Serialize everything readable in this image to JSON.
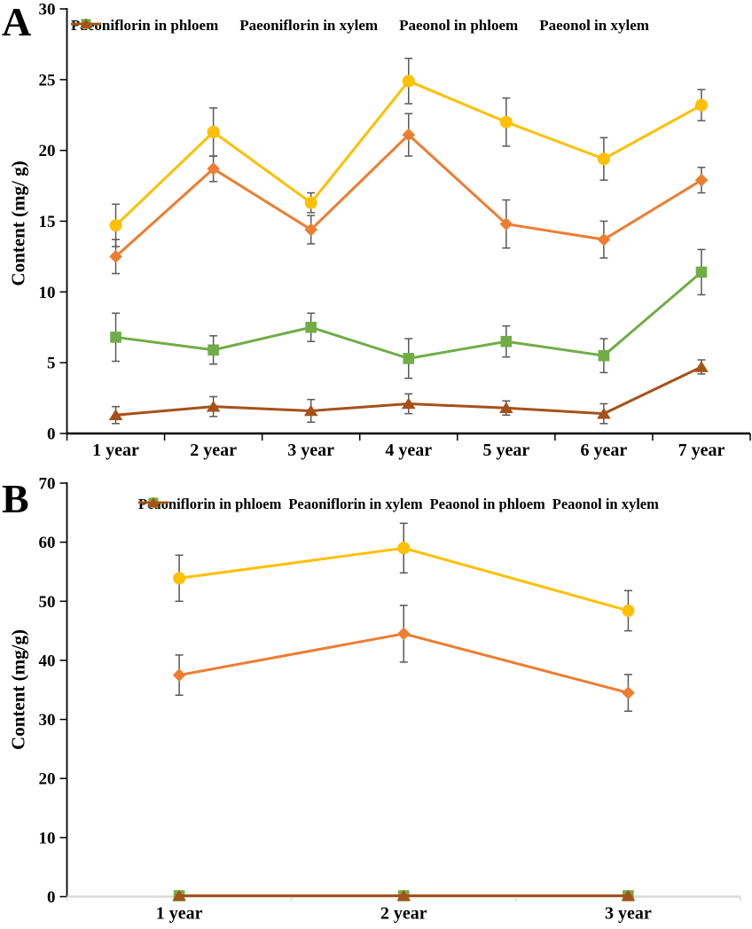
{
  "figure": {
    "background": "#ffffff",
    "error_bar_color": "#595959",
    "panel_count": 2
  },
  "chart_data": [
    {
      "type": "line",
      "panel_label": "A",
      "title": "",
      "xlabel": "",
      "ylabel": "Content (mg/ g)",
      "categories": [
        "1 year",
        "2 year",
        "3 year",
        "4 year",
        "5 year",
        "6 year",
        "7 year"
      ],
      "ylim": [
        0,
        30
      ],
      "yticks": [
        0,
        5,
        10,
        15,
        20,
        25,
        30
      ],
      "grid": false,
      "error_bars": true,
      "legend_position": "top",
      "axis_color": "#000000",
      "x_axis_color": "#000000",
      "series": [
        {
          "name": "Paeoniflorin in phloem",
          "marker": "diamond",
          "color": "#ED7D31",
          "values": [
            12.5,
            18.7,
            14.4,
            21.1,
            14.8,
            13.7,
            17.9
          ],
          "errors": [
            1.2,
            0.9,
            1.0,
            1.5,
            1.7,
            1.3,
            0.9
          ]
        },
        {
          "name": "Paeoniflorin in xylem",
          "marker": "circle",
          "color": "#FFC000",
          "values": [
            14.7,
            21.3,
            16.3,
            24.9,
            22.0,
            19.4,
            23.2
          ],
          "errors": [
            1.5,
            1.7,
            0.7,
            1.6,
            1.7,
            1.5,
            1.1
          ]
        },
        {
          "name": "Paeonol in phloem",
          "marker": "square",
          "color": "#70AD47",
          "values": [
            6.8,
            5.9,
            7.5,
            5.3,
            6.5,
            5.5,
            11.4
          ],
          "errors": [
            1.7,
            1.0,
            1.0,
            1.4,
            1.1,
            1.2,
            1.6
          ]
        },
        {
          "name": "Paeonol in xylem",
          "marker": "triangle",
          "color": "#A5511A",
          "values": [
            1.3,
            1.9,
            1.6,
            2.1,
            1.8,
            1.4,
            4.7
          ],
          "errors": [
            0.6,
            0.7,
            0.8,
            0.7,
            0.5,
            0.7,
            0.5
          ]
        }
      ]
    },
    {
      "type": "line",
      "panel_label": "B",
      "title": "",
      "xlabel": "",
      "ylabel": "Content (mg/g)",
      "categories": [
        "1 year",
        "2 year",
        "3 year"
      ],
      "ylim": [
        0,
        70
      ],
      "yticks": [
        0,
        10,
        20,
        30,
        40,
        50,
        60,
        70
      ],
      "grid": false,
      "error_bars": true,
      "legend_position": "top",
      "axis_color": "#000000",
      "x_axis_color": "#D9D9D9",
      "series": [
        {
          "name": "Peaoniflorin in phloem",
          "marker": "diamond",
          "color": "#ED7D31",
          "values": [
            37.5,
            44.5,
            34.5
          ],
          "errors": [
            3.4,
            4.8,
            3.1
          ]
        },
        {
          "name": "Peaoniflorin in xylem",
          "marker": "circle",
          "color": "#FFC000",
          "values": [
            53.9,
            59.0,
            48.4
          ],
          "errors": [
            3.9,
            4.2,
            3.4
          ]
        },
        {
          "name": "Peaonol in phloem",
          "marker": "square",
          "color": "#70AD47",
          "values": [
            0.15,
            0.15,
            0.15
          ],
          "errors": [
            0,
            0,
            0
          ]
        },
        {
          "name": "Peaonol in xylem",
          "marker": "triangle",
          "color": "#A5511A",
          "values": [
            0.15,
            0.15,
            0.15
          ],
          "errors": [
            0,
            0,
            0
          ]
        }
      ]
    }
  ]
}
